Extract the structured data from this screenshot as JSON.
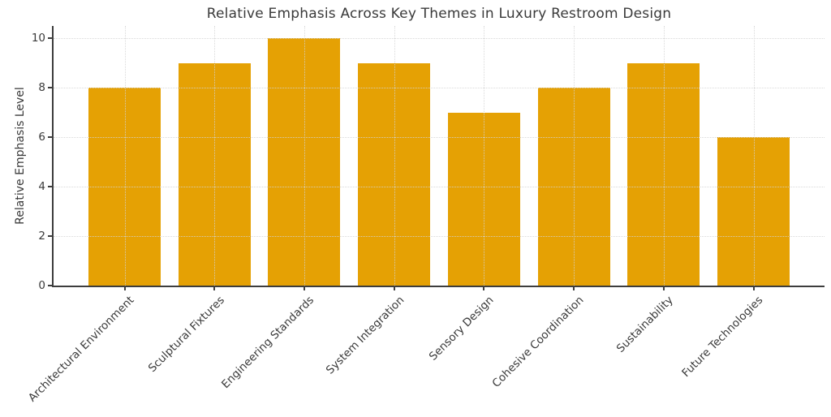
{
  "chart_data": {
    "type": "bar",
    "title": "Relative Emphasis Across Key Themes in Luxury Restroom Design",
    "categories": [
      "Architectural Environment",
      "Sculptural Fixtures",
      "Engineering Standards",
      "System Integration",
      "Sensory Design",
      "Cohesive Coordination",
      "Sustainability",
      "Future Technologies"
    ],
    "values": [
      8,
      9,
      10,
      9,
      7,
      8,
      9,
      6
    ],
    "xlabel": "",
    "ylabel": "Relative Emphasis Level",
    "ylim": [
      0,
      10.5
    ],
    "yticks": [
      0,
      2,
      4,
      6,
      8,
      10
    ],
    "bar_color": "#E5A104",
    "axis_color": "#3d3d3d",
    "text_color": "#3a3a3a",
    "grid": "on",
    "grid_style": "dotted",
    "grid_color": "#d4d4d4",
    "legend_position": "none",
    "x_label_rotation_deg": 45
  }
}
